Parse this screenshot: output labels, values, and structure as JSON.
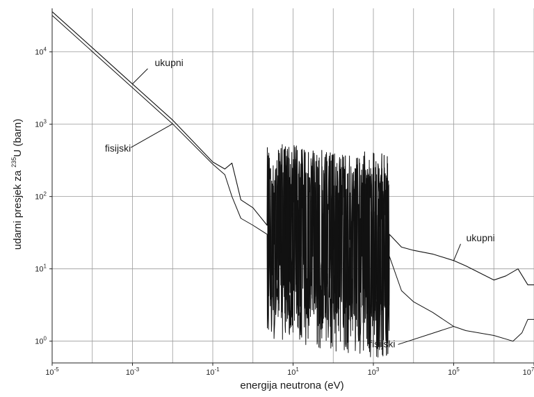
{
  "chart_data": {
    "type": "line",
    "title": "",
    "xlabel": "energija neutrona (eV)",
    "ylabel": {
      "prefix": "udarni presjek za ",
      "sup": "235",
      "suffix": "U (barn)"
    },
    "x_scale": "log",
    "y_scale": "log",
    "xlim": [
      1e-05,
      10000000.0
    ],
    "ylim": [
      0.5,
      40000
    ],
    "grid": true,
    "legend": "none",
    "x_ticks": [
      {
        "base": "10",
        "exp": "-5",
        "value": 1e-05
      },
      {
        "base": "10",
        "exp": "-3",
        "value": 0.001
      },
      {
        "base": "10",
        "exp": "-1",
        "value": 0.1
      },
      {
        "base": "10",
        "exp": "1",
        "value": 10.0
      },
      {
        "base": "10",
        "exp": "3",
        "value": 1000.0
      },
      {
        "base": "10",
        "exp": "5",
        "value": 100000.0
      },
      {
        "base": "10",
        "exp": "7",
        "value": 10000000.0
      }
    ],
    "x_grid": [
      1e-05,
      0.0001,
      0.001,
      0.01,
      0.1,
      1,
      10,
      100,
      1000,
      10000.0,
      100000.0,
      1000000.0,
      10000000.0
    ],
    "y_ticks": [
      {
        "base": "10",
        "exp": "0",
        "value": 1
      },
      {
        "base": "10",
        "exp": "1",
        "value": 10
      },
      {
        "base": "10",
        "exp": "2",
        "value": 100
      },
      {
        "base": "10",
        "exp": "3",
        "value": 1000
      },
      {
        "base": "10",
        "exp": "4",
        "value": 10000
      }
    ],
    "series": [
      {
        "label": "ukupni",
        "x": [
          1e-05,
          0.0001,
          0.001,
          0.01,
          0.1,
          0.2,
          0.3,
          0.5,
          1.0,
          2.25,
          2500,
          5000,
          10000.0,
          30000.0,
          100000.0,
          200000.0,
          1000000.0,
          2000000.0,
          4000000.0,
          7000000.0,
          10000000.0
        ],
        "y": [
          36000,
          11400,
          3600,
          1140,
          300,
          240,
          290,
          90,
          70,
          40,
          30,
          20,
          18,
          16,
          13,
          11,
          7,
          8,
          10,
          6,
          6
        ]
      },
      {
        "label": "fisijski",
        "x": [
          1e-05,
          0.0001,
          0.001,
          0.01,
          0.1,
          0.2,
          0.3,
          0.5,
          1.0,
          2.25,
          2500,
          5000,
          10000.0,
          30000.0,
          100000.0,
          200000.0,
          1000000.0,
          3000000.0,
          5000000.0,
          7000000.0,
          10000000.0
        ],
        "y": [
          32000,
          10100,
          3200,
          1010,
          280,
          200,
          100,
          50,
          40,
          30,
          15,
          5,
          3.5,
          2.5,
          1.6,
          1.4,
          1.2,
          1.0,
          1.3,
          2.0,
          2.0
        ]
      }
    ],
    "resonance_region": {
      "x_min": 2.25,
      "x_max": 2500,
      "y_min": 0.6,
      "y_max": 1100
    },
    "annotations": [
      {
        "text": "ukupni",
        "series": "ukupni",
        "at_x": 0.001
      },
      {
        "text": "fisijski",
        "series": "fisijski",
        "at_x": 0.01
      },
      {
        "text": "ukupni",
        "series": "ukupni",
        "at_x": 100000
      },
      {
        "text": "fisijski",
        "series": "fisijski",
        "at_x": 100000
      }
    ]
  }
}
